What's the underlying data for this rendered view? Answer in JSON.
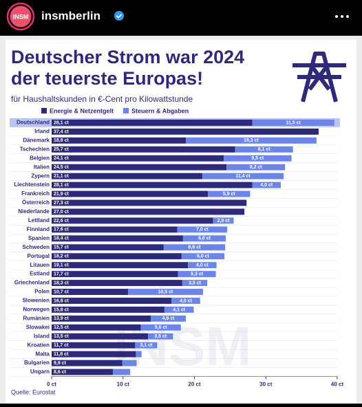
{
  "header": {
    "avatar_text": "INSM",
    "account": "insmberlin"
  },
  "watermark": "INSM",
  "chart_data": {
    "type": "stacked-barh",
    "title": [
      "Deutscher Strom war 2024",
      "der teuerste Europas!"
    ],
    "subtitle": "für Haushaltskunden in €-Cent pro Kilowattstunde",
    "source": "Quelle: Eurostat",
    "highlight": "Deutschland",
    "categories": [
      "Deutschland",
      "Irland",
      "Dänemark",
      "Tschechien",
      "Belgien",
      "Italien",
      "Zypern",
      "Liechtenstein",
      "Frankreich",
      "Österreich",
      "Niederlande",
      "Lettland",
      "Finnland",
      "Spanien",
      "Schweden",
      "Portugal",
      "Litauen",
      "Estland",
      "Griechenland",
      "Polen",
      "Slowenien",
      "Norwegen",
      "Rumänien",
      "Slowakei",
      "Island",
      "Kroatien",
      "Malta",
      "Bulgarien",
      "Ungarn"
    ],
    "series": [
      {
        "name": "Energie & Netzentgelt",
        "color": "#2e2a7a",
        "values": [
          28.1,
          37.4,
          18.8,
          25.7,
          24.1,
          24.5,
          21.1,
          28.1,
          21.9,
          27.3,
          27.0,
          22.6,
          17.6,
          18.4,
          15.7,
          18.2,
          19.1,
          17.7,
          18.3,
          10.7,
          16.8,
          15.8,
          13.9,
          12.5,
          13.5,
          11.7,
          11.8,
          9.9,
          8.6
        ],
        "value_labels": [
          "28,1 ct",
          "37,4 ct",
          "18,8 ct",
          "25,7 ct",
          "24,1 ct",
          "24,5 ct",
          "21,1 ct",
          "28,1 ct",
          "21,9 ct",
          "27,3 ct",
          "27,0 ct",
          "22,6 ct",
          "17,6 ct",
          "18,4 ct",
          "15,7 ct",
          "18,2 ct",
          "19,1 ct",
          "17,7 ct",
          "18,3 ct",
          "10,7 ct",
          "16,8 ct",
          "15,8 ct",
          "13,9 ct",
          "12,5 ct",
          "13,5 ct",
          "11,7 ct",
          "11,8 ct",
          "9,9 ct",
          "8,6 ct"
        ]
      },
      {
        "name": "Steuern & Abgaben",
        "color": "#6b86e6",
        "values": [
          11.5,
          null,
          18.3,
          8.1,
          9.5,
          8.2,
          11.4,
          4.0,
          5.9,
          null,
          null,
          2.9,
          7.0,
          6.0,
          8.6,
          6.0,
          4.0,
          5.3,
          3.5,
          10.5,
          4.0,
          4.1,
          4.9,
          5.6,
          3.5,
          3.1,
          0.8,
          2.0,
          2.4
        ],
        "value_labels": [
          "11,5 ct",
          null,
          "18,3 ct",
          "8,1 ct",
          "9,5 ct",
          "8,2 ct",
          "11,4 ct",
          "4,0 ct",
          "5,9 ct",
          null,
          null,
          "2,9 ct",
          "7,0 ct",
          "6,0 ct",
          "8,6 ct",
          "6,0 ct",
          "4,0 ct",
          "5,3 ct",
          "3,5 ct",
          "10,5 ct",
          "4,0 ct",
          "4,1 ct",
          "4,9 ct",
          "5,6 ct",
          "3,5 ct",
          "3,1 ct",
          null,
          null,
          null
        ]
      }
    ],
    "xlim": [
      0,
      40
    ],
    "xticks": [
      {
        "value": 0,
        "label": "0 ct"
      },
      {
        "value": 10,
        "label": "10 ct"
      },
      {
        "value": 20,
        "label": "20 ct"
      },
      {
        "value": 30,
        "label": "30 ct"
      },
      {
        "value": 40,
        "label": "40 ct"
      }
    ]
  }
}
